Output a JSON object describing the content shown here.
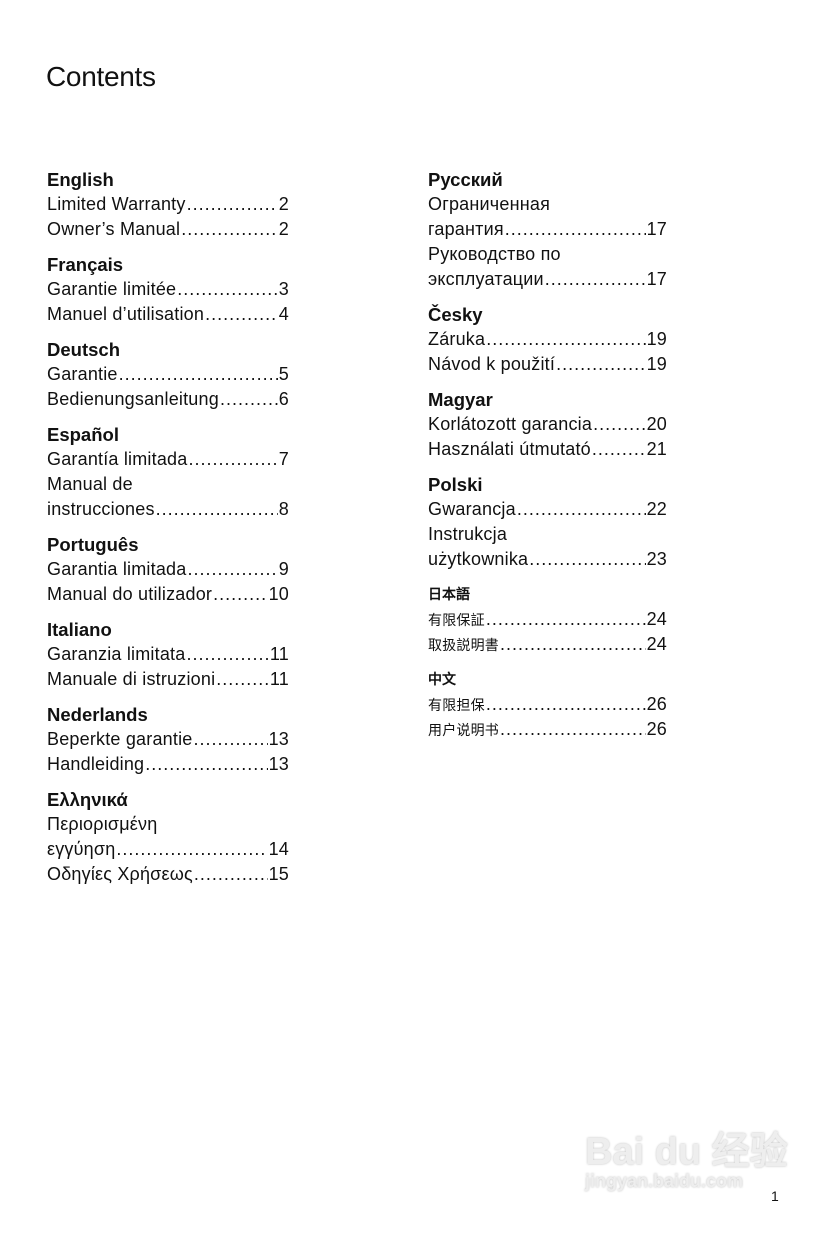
{
  "title": "Contents",
  "left_column": [
    {
      "language": "English",
      "entries": [
        {
          "lines": [
            "Limited Warranty"
          ],
          "page": "2"
        },
        {
          "lines": [
            "Owner’s Manual"
          ],
          "page": "2"
        }
      ]
    },
    {
      "language": "Français",
      "entries": [
        {
          "lines": [
            "Garantie limitée"
          ],
          "page": "3"
        },
        {
          "lines": [
            "Manuel d’utilisation"
          ],
          "page": "4"
        }
      ]
    },
    {
      "language": "Deutsch",
      "entries": [
        {
          "lines": [
            "Garantie"
          ],
          "page": "5"
        },
        {
          "lines": [
            "Bedienungsanleitung"
          ],
          "page": "6"
        }
      ]
    },
    {
      "language": "Español",
      "entries": [
        {
          "lines": [
            "Garantía limitada"
          ],
          "page": "7"
        },
        {
          "lines": [
            "Manual de",
            "instrucciones"
          ],
          "page": "8"
        }
      ]
    },
    {
      "language": "Português",
      "entries": [
        {
          "lines": [
            "Garantia limitada"
          ],
          "page": "9"
        },
        {
          "lines": [
            "Manual do utilizador"
          ],
          "page": "10"
        }
      ]
    },
    {
      "language": "Italiano",
      "entries": [
        {
          "lines": [
            "Garanzia limitata"
          ],
          "page": "11"
        },
        {
          "lines": [
            "Manuale di istruzioni"
          ],
          "page": "11"
        }
      ]
    },
    {
      "language": "Nederlands",
      "entries": [
        {
          "lines": [
            "Beperkte garantie"
          ],
          "page": "13"
        },
        {
          "lines": [
            "Handleiding"
          ],
          "page": "13"
        }
      ]
    },
    {
      "language": "Ελληνικά",
      "entries": [
        {
          "lines": [
            "Περιορισμένη",
            "εγγύηση"
          ],
          "page": "14"
        },
        {
          "lines": [
            "Οδηγίες Χρήσεως"
          ],
          "page": "15"
        }
      ]
    }
  ],
  "right_column": [
    {
      "language": "Русский",
      "entries": [
        {
          "lines": [
            "Ограниченная",
            "гарантия"
          ],
          "page": "17"
        },
        {
          "lines": [
            "Руководство по",
            "эксплуатации"
          ],
          "page": "17"
        }
      ]
    },
    {
      "language": "Česky",
      "entries": [
        {
          "lines": [
            "Záruka"
          ],
          "page": "19"
        },
        {
          "lines": [
            "Návod k použití"
          ],
          "page": "19"
        }
      ]
    },
    {
      "language": "Magyar",
      "entries": [
        {
          "lines": [
            "Korlátozott garancia"
          ],
          "page": "20"
        },
        {
          "lines": [
            "Használati útmutató"
          ],
          "page": "21"
        }
      ]
    },
    {
      "language": "Polski",
      "entries": [
        {
          "lines": [
            "Gwarancja"
          ],
          "page": "22"
        },
        {
          "lines": [
            "Instrukcja",
            "użytkownika"
          ],
          "page": "23"
        }
      ]
    },
    {
      "language": "日本語",
      "cjk": true,
      "entries": [
        {
          "lines": [
            "有限保証"
          ],
          "page": "24"
        },
        {
          "lines": [
            "取扱説明書"
          ],
          "page": "24"
        }
      ]
    },
    {
      "language": "中文",
      "cjk": true,
      "entries": [
        {
          "lines": [
            "有限担保"
          ],
          "page": "26"
        },
        {
          "lines": [
            "用户说明书"
          ],
          "page": "26"
        }
      ]
    }
  ],
  "page_number": "1",
  "watermark": {
    "logo": "Baidu经验",
    "url_text": "jingyan.baidu.com"
  }
}
